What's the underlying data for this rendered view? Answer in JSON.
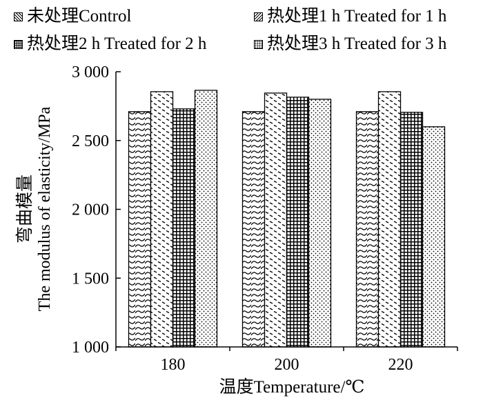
{
  "chart_data": {
    "type": "bar",
    "categories": [
      "180",
      "200",
      "220"
    ],
    "series": [
      {
        "name": "未处理Control",
        "pattern": "wave",
        "values": [
          2710,
          2710,
          2710
        ]
      },
      {
        "name": "热处理1 h Treated for 1 h",
        "pattern": "dash",
        "values": [
          2855,
          2845,
          2855
        ]
      },
      {
        "name": "热处理2 h Treated for 2 h",
        "pattern": "grid",
        "values": [
          2730,
          2815,
          2705
        ]
      },
      {
        "name": "热处理3 h Treated for 3 h",
        "pattern": "dots",
        "values": [
          2865,
          2800,
          2600
        ]
      }
    ],
    "xlabel": "温度Temperature/℃",
    "ylabel_cn": "弯曲模量",
    "ylabel_en": "The modulus of elasticity/MPa",
    "ylim": [
      1000,
      3000
    ],
    "yticks": [
      1000,
      1500,
      2000,
      2500,
      3000
    ],
    "ytick_labels": [
      "1 000",
      "1 500",
      "2 000",
      "2 500",
      "3 000"
    ],
    "legend_position": "top",
    "grid": false,
    "colors": {
      "ink": "#000000",
      "background": "#ffffff"
    }
  }
}
